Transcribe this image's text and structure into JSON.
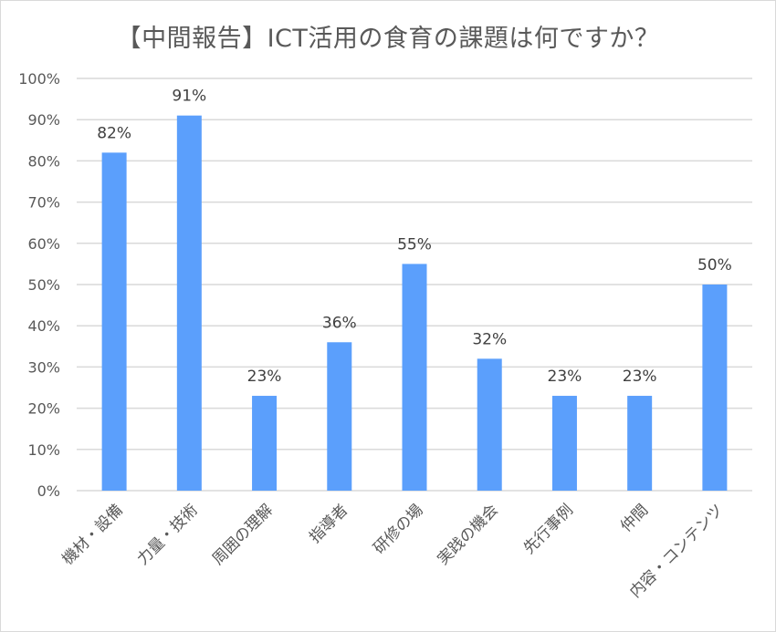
{
  "chart_data": {
    "type": "bar",
    "title": "【中間報告】ICT活用の食育の課題は何ですか？",
    "categories": [
      "機材・設備",
      "力量・技術",
      "周囲の理解",
      "指導者",
      "研修の場",
      "実践の機会",
      "先行事例",
      "仲間",
      "内容・コンテンツ"
    ],
    "values": [
      82,
      91,
      23,
      36,
      55,
      32,
      23,
      23,
      50
    ],
    "data_labels": [
      "82%",
      "91%",
      "23%",
      "36%",
      "55%",
      "32%",
      "23%",
      "23%",
      "50%"
    ],
    "y_ticks": [
      "0%",
      "10%",
      "20%",
      "30%",
      "40%",
      "50%",
      "60%",
      "70%",
      "80%",
      "90%",
      "100%"
    ],
    "ylim": [
      0,
      100
    ],
    "grid": true,
    "bar_color": "#5b9ffc",
    "grid_color": "#d9d9d9"
  }
}
